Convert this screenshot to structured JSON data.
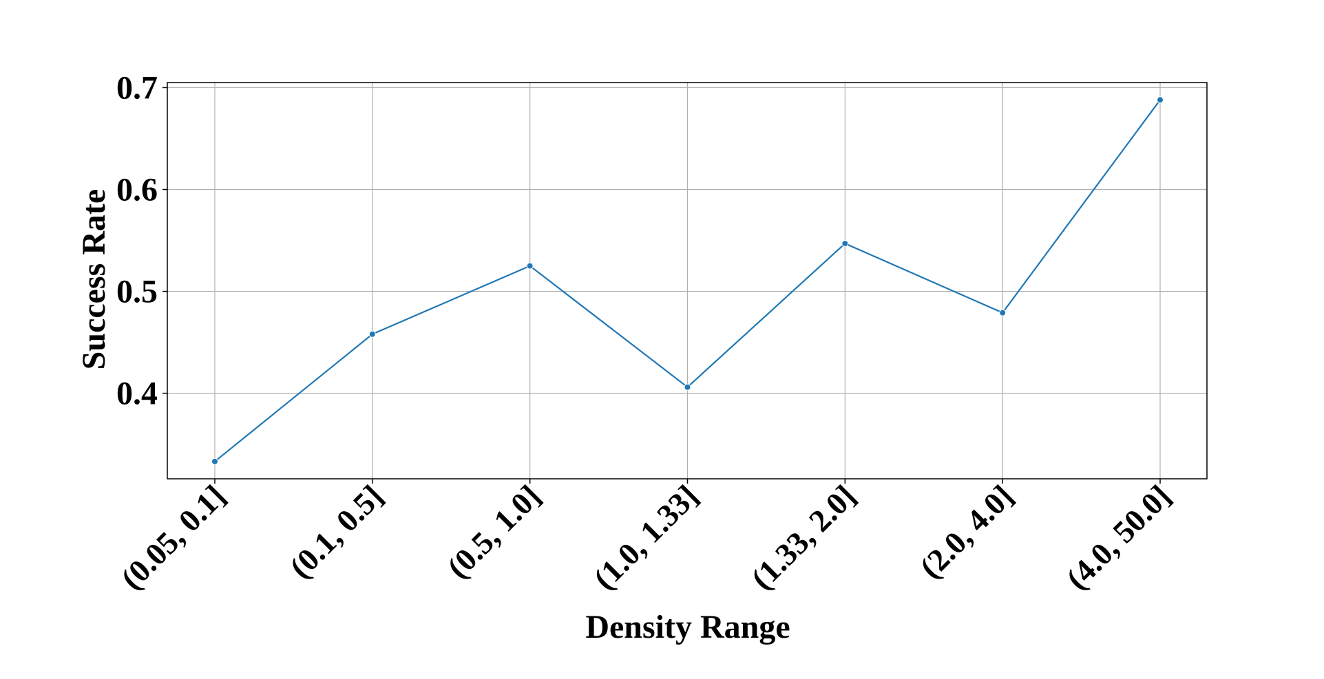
{
  "chart_data": {
    "type": "line",
    "title": "",
    "xlabel": "Density Range",
    "ylabel": "Success Rate",
    "categories": [
      "(0.05, 0.1]",
      "(0.1, 0.5]",
      "(0.5, 1.0]",
      "(1.0, 1.33]",
      "(1.33, 2.0]",
      "(2.0, 4.0]",
      "(4.0, 50.0]"
    ],
    "series": [
      {
        "values": [
          0.333,
          0.458,
          0.525,
          0.406,
          0.547,
          0.479,
          0.688
        ],
        "color": "#1f77b4",
        "marker": "circle"
      }
    ],
    "ylim": [
      0.316,
      0.705
    ],
    "yticks": [
      0.4,
      0.5,
      0.6,
      0.7
    ],
    "ytick_labels": [
      "0.4",
      "0.5",
      "0.6",
      "0.7"
    ],
    "grid": true,
    "legend": "none"
  }
}
